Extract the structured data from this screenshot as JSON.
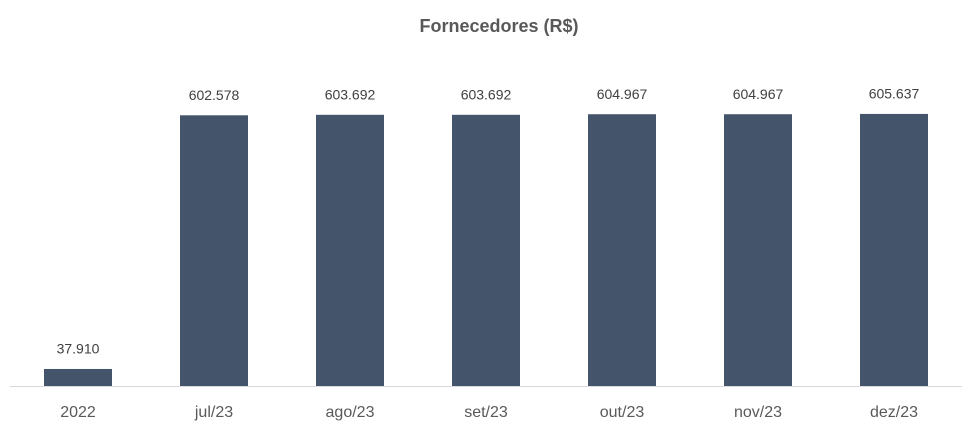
{
  "chart_data": {
    "type": "bar",
    "title": "Fornecedores (R$)",
    "categories": [
      "2022",
      "jul/23",
      "ago/23",
      "set/23",
      "out/23",
      "nov/23",
      "dez/23"
    ],
    "values": [
      37910,
      602578,
      603692,
      603692,
      604967,
      604967,
      605637
    ],
    "value_labels": [
      "37.910",
      "602.578",
      "603.692",
      "603.692",
      "604.967",
      "604.967",
      "605.637"
    ],
    "color": "#44546a",
    "ylim": [
      0,
      650000
    ]
  }
}
